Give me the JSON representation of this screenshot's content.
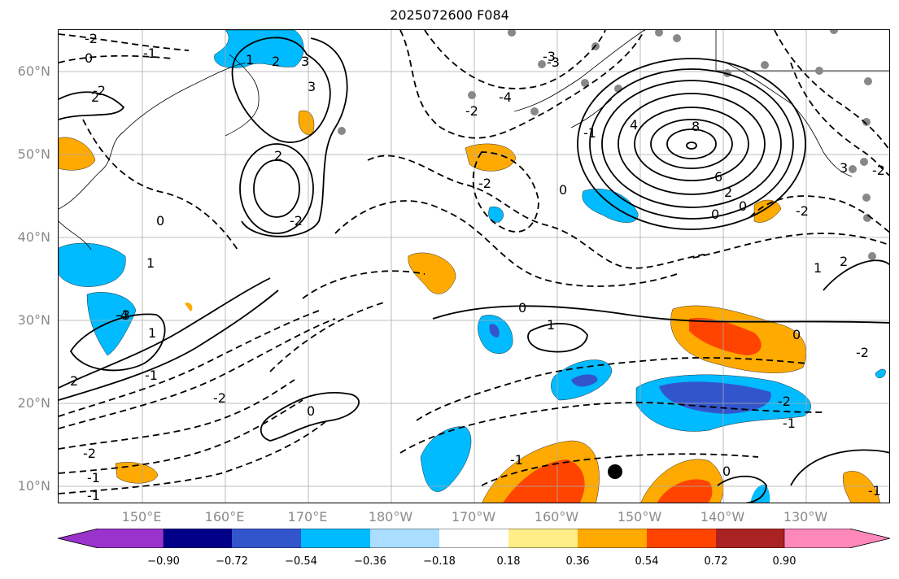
{
  "title": "2025072600 F084",
  "lat_labels": [
    "60°N",
    "50°N",
    "40°N",
    "30°N",
    "20°N",
    "10°N"
  ],
  "lon_labels": [
    "150°E",
    "160°E",
    "170°E",
    "180°W",
    "170°W",
    "160°W",
    "150°W",
    "140°W",
    "130°W"
  ],
  "colorbar": {
    "colors": [
      "#9933cc",
      "#000088",
      "#3355cc",
      "#00bbff",
      "#aaddff",
      "#ffffff",
      "#ffee88",
      "#ffaa00",
      "#ff4400",
      "#aa2222",
      "#ff88bb"
    ],
    "ticks": [
      "−0.90",
      "−0.72",
      "−0.54",
      "−0.36",
      "−0.18",
      "0.18",
      "0.36",
      "0.54",
      "0.72",
      "0.90"
    ]
  },
  "contour_labels": [
    "-2",
    "0",
    "-1",
    "-2",
    "2",
    "3",
    "8",
    "6",
    "2",
    "0",
    "0",
    "-2",
    "2",
    "-2",
    "0",
    "1",
    "-3",
    "-4",
    "-2",
    "-3",
    "0",
    "-1",
    "-2",
    "1",
    "-2",
    "2",
    "1",
    "0",
    "-1",
    "-2",
    "-1",
    "-2",
    "0",
    "0",
    "-2",
    "-1",
    "-1",
    "0",
    "-1",
    "-1",
    "-2",
    "1",
    "2",
    "-4",
    "4",
    "3",
    "1",
    "2",
    "3",
    "-3"
  ],
  "colors": {
    "positive_line": "#000000",
    "grid": "#aaaaaa",
    "land_outline": "#000000",
    "station_dot": "#888888",
    "marker_dot": "#000000"
  }
}
